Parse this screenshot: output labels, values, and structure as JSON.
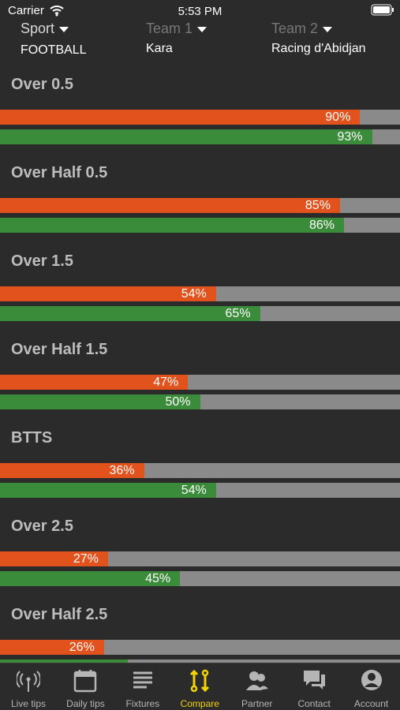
{
  "status_bar": {
    "carrier": "Carrier",
    "time": "5:53 PM"
  },
  "header": {
    "sport": {
      "label": "Sport",
      "value": "FOOTBALL"
    },
    "team1": {
      "label": "Team 1",
      "value": "Kara"
    },
    "team2": {
      "label": "Team 2",
      "value": "Racing d'Abidjan"
    }
  },
  "stats": [
    {
      "title": "Over 0.5",
      "team1": {
        "value": 90,
        "label": "90%"
      },
      "team2": {
        "value": 93,
        "label": "93%"
      }
    },
    {
      "title": "Over Half 0.5",
      "team1": {
        "value": 85,
        "label": "85%"
      },
      "team2": {
        "value": 86,
        "label": "86%"
      }
    },
    {
      "title": "Over 1.5",
      "team1": {
        "value": 54,
        "label": "54%"
      },
      "team2": {
        "value": 65,
        "label": "65%"
      }
    },
    {
      "title": "Over Half 1.5",
      "team1": {
        "value": 47,
        "label": "47%"
      },
      "team2": {
        "value": 50,
        "label": "50%"
      }
    },
    {
      "title": "BTTS",
      "team1": {
        "value": 36,
        "label": "36%"
      },
      "team2": {
        "value": 54,
        "label": "54%"
      }
    },
    {
      "title": "Over 2.5",
      "team1": {
        "value": 27,
        "label": "27%"
      },
      "team2": {
        "value": 45,
        "label": "45%"
      }
    },
    {
      "title": "Over Half 2.5",
      "team1": {
        "value": 26,
        "label": "26%"
      },
      "team2": {
        "value": 32
      }
    }
  ],
  "tabs": [
    "Live tips",
    "Daily tips",
    "Fixtures",
    "Compare",
    "Partner",
    "Contact",
    "Account"
  ],
  "active_tab": 3
}
